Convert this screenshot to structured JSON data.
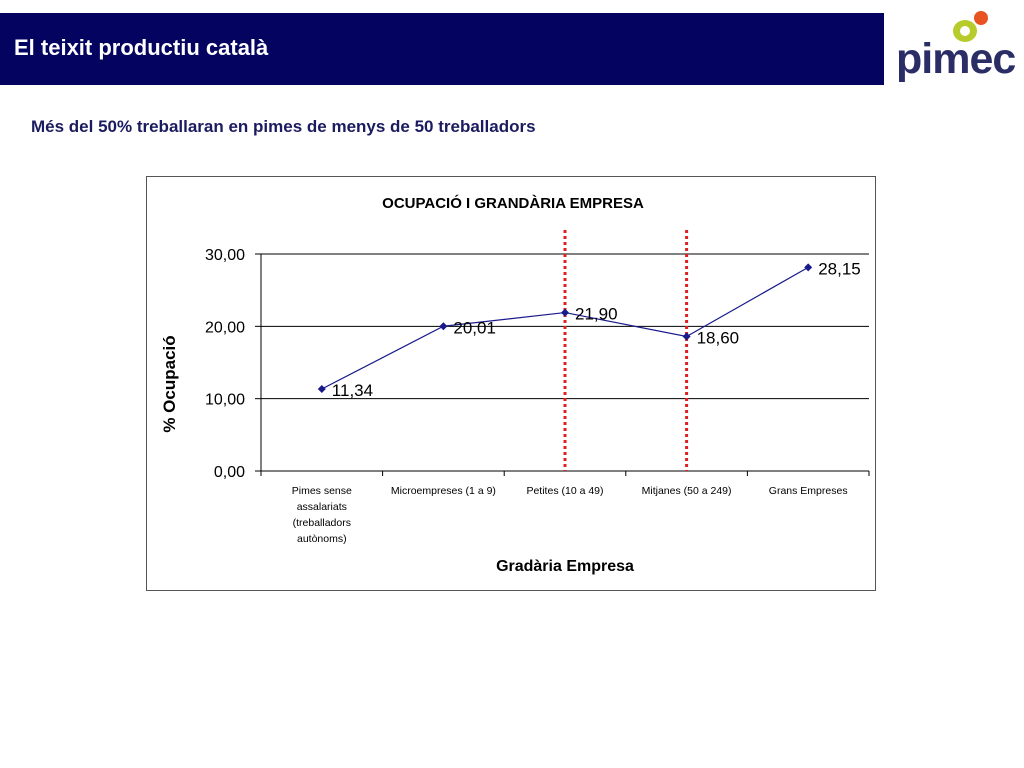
{
  "header": {
    "title": "El teixit productiu català",
    "logo_text": "pimec",
    "background_color": "#040360"
  },
  "subtitle": "Més del 50% treballaran en pimes de menys de 50 treballadors",
  "chart_data": {
    "type": "line",
    "title": "OCUPACIÓ I GRANDÀRIA EMPRESA",
    "xlabel": "Gradària Empresa",
    "ylabel": "% Ocupació",
    "categories": [
      "Pimes sense assalariats (treballadors autònoms)",
      "Microempreses (1 a 9)",
      "Petites (10 a 49)",
      "Mitjanes (50 a 249)",
      "Grans Empreses"
    ],
    "category_lines": [
      [
        "Pimes sense",
        "assalariats",
        "(treballadors",
        "autònoms)"
      ],
      [
        "Microempreses (1 a 9)"
      ],
      [
        "Petites (10 a 49)"
      ],
      [
        "Mitjanes (50 a 249)"
      ],
      [
        "Grans Empreses"
      ]
    ],
    "values": [
      11.34,
      20.01,
      21.9,
      18.6,
      28.15
    ],
    "data_labels": [
      "11,34",
      "20,01",
      "21,90",
      "18,60",
      "28,15"
    ],
    "ylim": [
      0,
      30
    ],
    "yticks": [
      "0,00",
      "10,00",
      "20,00",
      "30,00"
    ],
    "ytick_values": [
      0,
      10,
      20,
      30
    ],
    "grid": true,
    "legend": "none",
    "line_color": "#1a1a8c",
    "marker": "diamond",
    "annotations": [
      {
        "type": "vertical-dotted-line",
        "between_categories": [
          1,
          2
        ],
        "color": "#e02020"
      },
      {
        "type": "vertical-dotted-line",
        "between_categories": [
          2,
          3
        ],
        "color": "#e02020"
      }
    ]
  }
}
